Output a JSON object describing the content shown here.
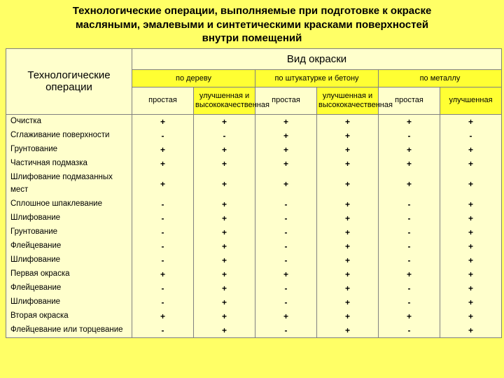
{
  "title_l1": "Технологические операции, выполняемые при подготовке к окраске",
  "title_l2": "масляными, эмалевыми и синтетическими красками поверхностей",
  "title_l3": "внутри помещений",
  "header": {
    "ops": "Технологические операции",
    "super": "Вид окраски",
    "groups": {
      "g1": "по дереву",
      "g2": "по  штукатурке и бетону",
      "g3": "по металлу"
    },
    "sub": {
      "simple": "простая",
      "good": "улучшенная и высококачественная",
      "improved": "улучшенная"
    }
  },
  "rows": {
    "r0": {
      "op": "Очистка",
      "v": [
        "+",
        "+",
        "+",
        "+",
        "+",
        "+"
      ]
    },
    "r1": {
      "op": "Сглаживание поверхности",
      "v": [
        "-",
        "-",
        "+",
        "+",
        "-",
        "-"
      ]
    },
    "r2": {
      "op": "Грунтование",
      "v": [
        "+",
        "+",
        "+",
        "+",
        "+",
        "+"
      ]
    },
    "r3": {
      "op": "Частичная подмазка",
      "v": [
        "+",
        "+",
        "+",
        "+",
        "+",
        "+"
      ]
    },
    "r4": {
      "op": "Шлифование подмазанных мест",
      "v": [
        "+",
        "+",
        "+",
        "+",
        "+",
        "+"
      ]
    },
    "r5": {
      "op": "Сплошное шпаклевание",
      "v": [
        "-",
        "+",
        "-",
        "+",
        "-",
        "+"
      ]
    },
    "r6": {
      "op": "Шлифование",
      "v": [
        "-",
        "+",
        "-",
        "+",
        "-",
        "+"
      ]
    },
    "r7": {
      "op": "Грунтование",
      "v": [
        "-",
        "+",
        "-",
        "+",
        "-",
        "+"
      ]
    },
    "r8": {
      "op": "Флейцевание",
      "v": [
        "-",
        "+",
        "-",
        "+",
        "-",
        "+"
      ]
    },
    "r9": {
      "op": "Шлифование",
      "v": [
        "-",
        "+",
        "-",
        "+",
        "-",
        "+"
      ]
    },
    "r10": {
      "op": "Первая окраска",
      "v": [
        "+",
        "+",
        "+",
        "+",
        "+",
        "+"
      ]
    },
    "r11": {
      "op": "Флейцевание",
      "v": [
        "-",
        "+",
        "-",
        "+",
        "-",
        "+"
      ]
    },
    "r12": {
      "op": "Шлифование",
      "v": [
        "-",
        "+",
        "-",
        "+",
        "-",
        "+"
      ]
    },
    "r13": {
      "op": "Вторая окраска",
      "v": [
        "+",
        "+",
        "+",
        "+",
        "+",
        "+"
      ]
    },
    "r14": {
      "op": "Флейцевание или торцевание",
      "v": [
        "-",
        "+",
        "-",
        "+",
        "-",
        "+"
      ]
    }
  }
}
